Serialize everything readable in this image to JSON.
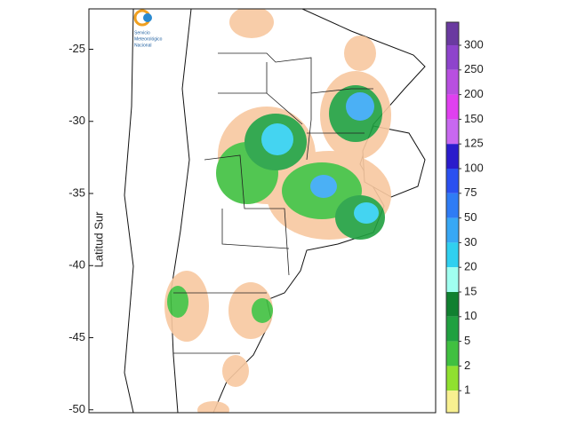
{
  "map": {
    "logo_lines": [
      "Servicio",
      "Meteorológico",
      "Nacional"
    ],
    "y_axis_label": "Latitud Sur",
    "ylim": [
      -22.2,
      -50.2
    ],
    "yticks": [
      -25,
      -30,
      -35,
      -40,
      -45,
      -50
    ],
    "colorbar": {
      "levels": [
        300,
        250,
        200,
        150,
        125,
        100,
        75,
        50,
        30,
        20,
        15,
        10,
        5,
        2,
        1
      ],
      "colors": [
        "#6a3aa0",
        "#8e44cc",
        "#b84fe0",
        "#e040f0",
        "#c868f0",
        "#2a1ccc",
        "#2a50f0",
        "#2f7cf5",
        "#38a8f5",
        "#30d0f0",
        "#a0fff0",
        "#108030",
        "#20a040",
        "#40c040",
        "#90e030",
        "#f8f090"
      ]
    }
  }
}
